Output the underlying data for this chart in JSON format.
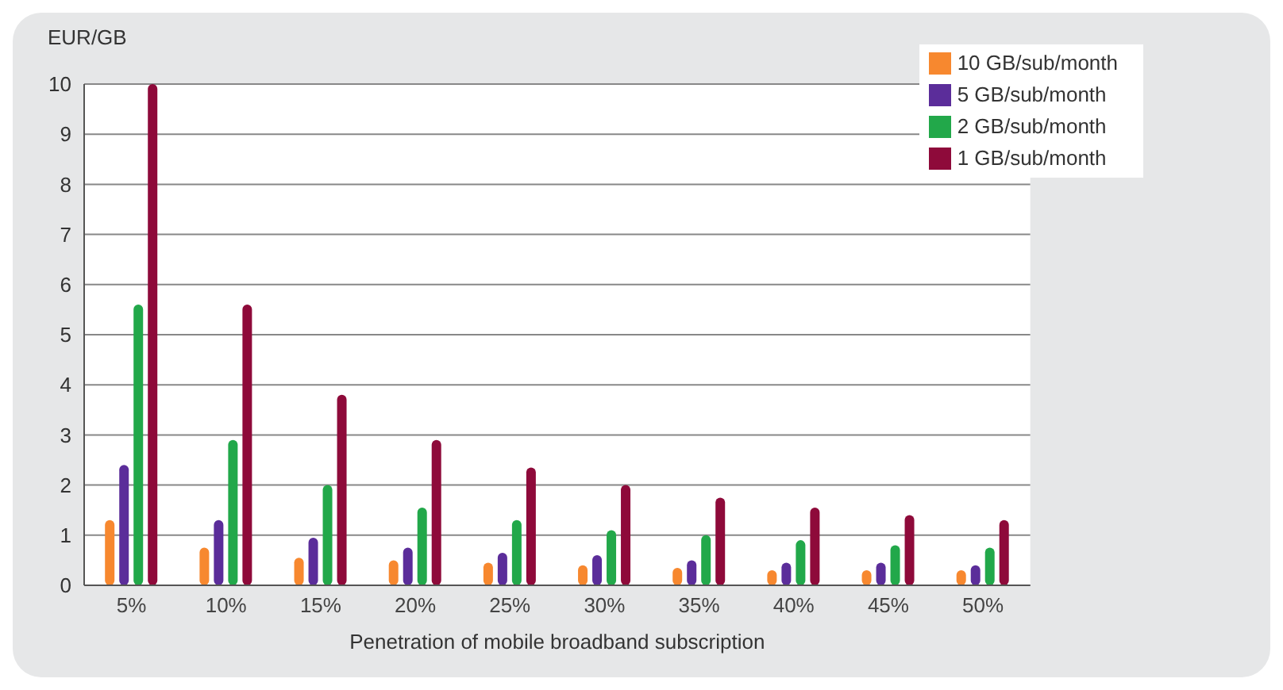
{
  "chart_data": {
    "type": "bar",
    "ylabel": "EUR/GB",
    "xlabel": "Penetration of mobile broadband subscription",
    "categories": [
      "5%",
      "10%",
      "15%",
      "20%",
      "25%",
      "30%",
      "35%",
      "40%",
      "45%",
      "50%"
    ],
    "series": [
      {
        "name": "10 GB/sub/month",
        "color": "#f7882f",
        "values": [
          1.3,
          0.75,
          0.55,
          0.5,
          0.45,
          0.4,
          0.35,
          0.3,
          0.3,
          0.3
        ]
      },
      {
        "name": "5 GB/sub/month",
        "color": "#5b2d9a",
        "values": [
          2.4,
          1.3,
          0.95,
          0.75,
          0.65,
          0.6,
          0.5,
          0.45,
          0.45,
          0.4
        ]
      },
      {
        "name": "2 GB/sub/month",
        "color": "#22a84a",
        "values": [
          5.6,
          2.9,
          2.0,
          1.55,
          1.3,
          1.1,
          1.0,
          0.9,
          0.8,
          0.75
        ]
      },
      {
        "name": "1 GB/sub/month",
        "color": "#8e0a3a",
        "values": [
          10,
          5.6,
          3.8,
          2.9,
          2.35,
          2.0,
          1.75,
          1.55,
          1.4,
          1.3
        ]
      }
    ],
    "ylim": [
      0,
      10
    ],
    "yticks": [
      0,
      1,
      2,
      3,
      4,
      5,
      6,
      7,
      8,
      9,
      10
    ],
    "grid": "y",
    "legend": "top right"
  }
}
